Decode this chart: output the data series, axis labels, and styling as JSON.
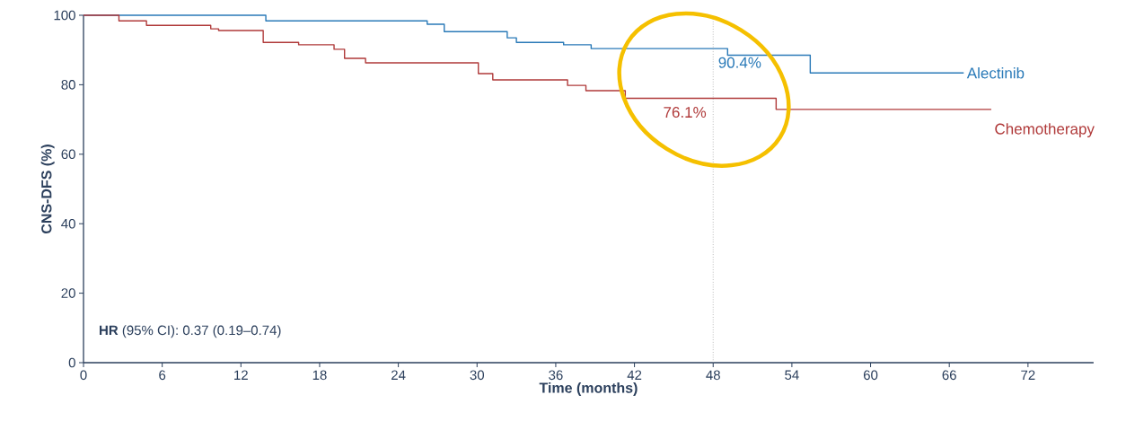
{
  "chart_data": {
    "type": "step",
    "xlabel": "Time (months)",
    "ylabel": "CNS-DFS (%)",
    "xlim": [
      0,
      77
    ],
    "xticks": [
      0,
      6,
      12,
      18,
      24,
      30,
      36,
      42,
      48,
      54,
      60,
      66,
      72
    ],
    "ylim": [
      0,
      100
    ],
    "yticks": [
      0,
      20,
      40,
      60,
      80,
      100
    ],
    "legend": false,
    "grid": false,
    "marker": "none",
    "series": [
      {
        "name": "Alectinib",
        "color": "#2a7ab8",
        "x": [
          0,
          13.9,
          26.2,
          27.5,
          32.3,
          33,
          36.6,
          38.7,
          49.1,
          55.4,
          67.1
        ],
        "values": [
          100,
          98.4,
          97.4,
          95.3,
          93.5,
          92.2,
          91.5,
          90.4,
          88.5,
          83.4,
          83.4
        ]
      },
      {
        "name": "Chemotherapy",
        "color": "#b03a3a",
        "x": [
          0,
          2.7,
          4.8,
          9.7,
          10.3,
          13.7,
          16.4,
          19.1,
          19.9,
          21.5,
          30.1,
          31.2,
          36.9,
          38.3,
          41.3,
          52.8,
          69.2
        ],
        "values": [
          100,
          98.4,
          97.1,
          96.1,
          95.6,
          92.2,
          91.5,
          90.2,
          87.6,
          86.3,
          83.2,
          81.4,
          79.8,
          78.3,
          76.1,
          72.9,
          72.9
        ]
      }
    ],
    "ref_lines": [
      {
        "axis": "x",
        "value": 48,
        "color": "#999999",
        "line_style": "dotted"
      }
    ],
    "annotations": [
      {
        "text": "90.4%",
        "x": 48,
        "y": 90.4
      },
      {
        "text": "76.1%",
        "x": 48,
        "y": 76.1
      },
      "**HR** (95% CI): 0.37 (0.19–0.74)"
    ]
  }
}
